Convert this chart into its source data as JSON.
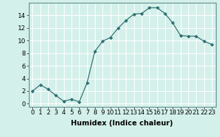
{
  "x": [
    0,
    1,
    2,
    3,
    4,
    5,
    6,
    7,
    8,
    9,
    10,
    11,
    12,
    13,
    14,
    15,
    16,
    17,
    18,
    19,
    20,
    21,
    22,
    23
  ],
  "y": [
    2,
    3,
    2.3,
    1.3,
    0.4,
    0.7,
    0.3,
    3.3,
    8.3,
    9.9,
    10.5,
    12.0,
    13.2,
    14.2,
    14.3,
    15.2,
    15.2,
    14.3,
    12.8,
    10.8,
    10.7,
    10.7,
    9.9,
    9.4
  ],
  "line_color": "#2d6e6e",
  "marker": "D",
  "marker_size": 2.5,
  "bg_color": "#d4f0ea",
  "grid_color": "#ffffff",
  "xlabel": "Humidex (Indice chaleur)",
  "ylabel_ticks": [
    0,
    2,
    4,
    6,
    8,
    10,
    12,
    14
  ],
  "ylim": [
    -0.5,
    16.0
  ],
  "xlim": [
    -0.5,
    23.5
  ],
  "xlabel_fontsize": 7.5,
  "tick_fontsize": 6.5,
  "xlabel_fontweight": "bold"
}
